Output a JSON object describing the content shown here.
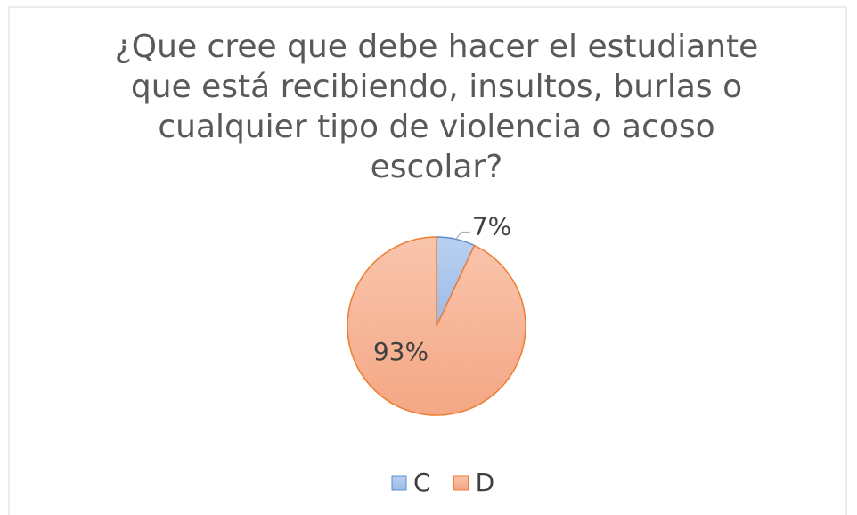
{
  "chart_data": {
    "type": "pie",
    "title": "¿Que cree que debe hacer el estudiante que está recibiendo, insultos, burlas o cualquier tipo de violencia o acoso escolar?",
    "categories": [
      "C",
      "D"
    ],
    "values": [
      7,
      93
    ],
    "value_labels": [
      "7%",
      "93%"
    ],
    "colors": [
      "#a9c4eb",
      "#f7b596"
    ],
    "legend": "bottom"
  }
}
